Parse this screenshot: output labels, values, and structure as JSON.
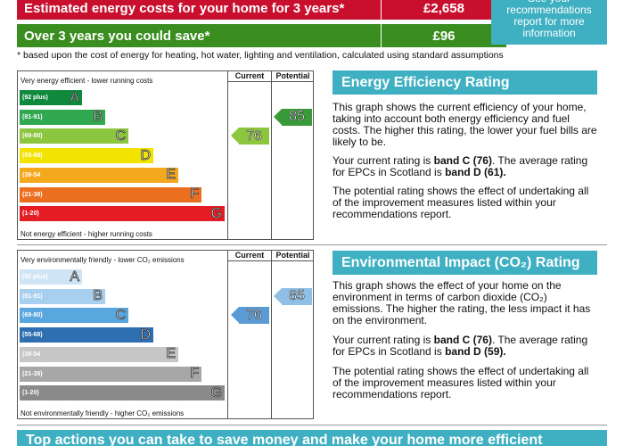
{
  "costs": {
    "row1_label": "Estimated energy costs for your home for 3 years*",
    "row1_value": "£2,658",
    "row2_label": "Over 3 years you could save*",
    "row2_value": "£96",
    "see_box": "See your recommendations report for more information"
  },
  "footnote": "* based upon the cost of energy for heating, hot water, lighting and ventilation, calculated using standard assumptions",
  "charts": [
    {
      "top_caption": "Very energy efficient - lower running costs",
      "bottom_caption": "Not energy efficient - higher running costs",
      "current_header": "Current",
      "potential_header": "Potential",
      "current": "76",
      "potential": "85",
      "current_color": "#8cc63f",
      "potential_color": "#3a9a3a",
      "bands": [
        {
          "range": "(92 plus)",
          "letter": "A",
          "color": "#0f8a3c"
        },
        {
          "range": "(81-91)",
          "letter": "B",
          "color": "#2fa84f"
        },
        {
          "range": "(69-80)",
          "letter": "C",
          "color": "#8cc63f"
        },
        {
          "range": "(55-68)",
          "letter": "D",
          "color": "#f2e300"
        },
        {
          "range": "(39-54",
          "letter": "E",
          "color": "#f4a81d"
        },
        {
          "range": "(21-38)",
          "letter": "F",
          "color": "#ec6f1f"
        },
        {
          "range": "(1-20)",
          "letter": "G",
          "color": "#e31d23"
        }
      ]
    },
    {
      "top_caption": "Very environmentally friendly - lower CO₂ emissions",
      "bottom_caption": "Not environmentally friendly - higher CO₂ emissions",
      "current_header": "Current",
      "potential_header": "Potential",
      "current": "76",
      "potential": "85",
      "current_color": "#5b9bd5",
      "potential_color": "#8fbfe6",
      "bands": [
        {
          "range": "(92 plus)",
          "letter": "A",
          "color": "#cfe4f5"
        },
        {
          "range": "(81-91)",
          "letter": "B",
          "color": "#a9cfee"
        },
        {
          "range": "(69-80)",
          "letter": "C",
          "color": "#5aa7df"
        },
        {
          "range": "(55-68)",
          "letter": "D",
          "color": "#2d6fb0"
        },
        {
          "range": "(39-54",
          "letter": "E",
          "color": "#c6c6c6"
        },
        {
          "range": "(21-38)",
          "letter": "F",
          "color": "#a7a7a7"
        },
        {
          "range": "(1-20)",
          "letter": "G",
          "color": "#8a8a8a"
        }
      ]
    }
  ],
  "energy_panel": {
    "title": "Energy Efficiency Rating",
    "p1": "This graph shows the current efficiency of your home, taking into account both energy efficiency and fuel costs. The higher this rating, the lower your fuel bills are likely to be.",
    "p2_pre": "Your current rating is ",
    "p2_b1": "band C (76)",
    "p2_mid": ". The average rating for EPCs in Scotland is ",
    "p2_b2": "band D (61).",
    "p3": "The potential rating shows the effect of undertaking all of the improvement measures listed within your recommendations report."
  },
  "env_panel": {
    "title": "Environmental Impact (CO₂) Rating",
    "p1": "This graph shows the effect of your home on the environment in terms of carbon dioxide (CO₂) emissions. The higher the rating, the less impact it has on the environment.",
    "p2_pre": "Your current rating is ",
    "p2_b1": "band C (76)",
    "p2_mid": ". The average rating for EPCs in Scotland is ",
    "p2_b2": "band D (59).",
    "p3": "The potential rating shows the effect of undertaking all of the improvement measures listed within your recommendations report."
  },
  "bottom_bar": "Top actions you can take to save money and make your home more efficient"
}
